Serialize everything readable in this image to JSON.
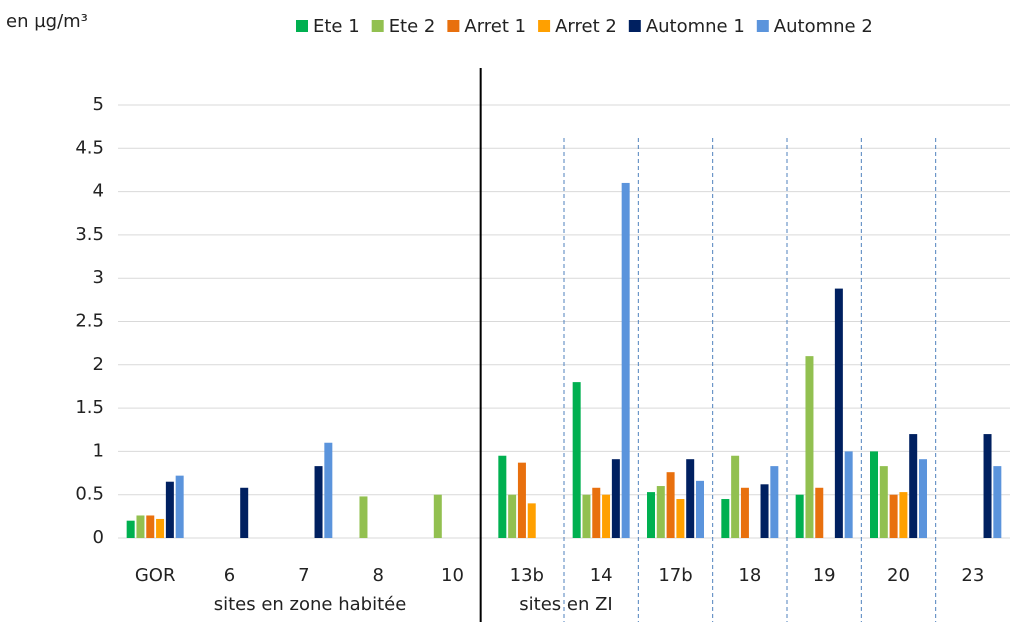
{
  "chart_data": {
    "type": "bar",
    "y_label": "en µg/m³",
    "categories": [
      "GOR",
      "6",
      "7",
      "8",
      "10",
      "13b",
      "14",
      "17b",
      "18",
      "19",
      "20",
      "23"
    ],
    "series": [
      {
        "name": "Ete 1",
        "color": "#00b050",
        "values": [
          0.2,
          null,
          null,
          null,
          null,
          0.95,
          1.8,
          0.53,
          0.45,
          0.5,
          1.0,
          null
        ]
      },
      {
        "name": "Ete 2",
        "color": "#92c050",
        "values": [
          0.26,
          null,
          null,
          0.48,
          0.5,
          0.5,
          0.5,
          0.6,
          0.95,
          2.1,
          0.83,
          null
        ]
      },
      {
        "name": "Arret 1",
        "color": "#e8700e",
        "values": [
          0.26,
          null,
          null,
          null,
          null,
          0.87,
          0.58,
          0.76,
          0.58,
          0.58,
          0.5,
          null
        ]
      },
      {
        "name": "Arret 2",
        "color": "#ffa000",
        "values": [
          0.22,
          null,
          null,
          null,
          null,
          0.4,
          0.5,
          0.45,
          null,
          null,
          0.53,
          null
        ]
      },
      {
        "name": "Automne 1",
        "color": "#002060",
        "values": [
          0.65,
          0.58,
          0.83,
          null,
          null,
          null,
          0.91,
          0.91,
          0.62,
          2.88,
          1.2,
          1.2
        ]
      },
      {
        "name": "Automne 2",
        "color": "#5b94dc",
        "values": [
          0.72,
          null,
          1.1,
          null,
          null,
          null,
          4.1,
          0.66,
          0.83,
          1.0,
          0.91,
          0.83
        ]
      }
    ],
    "annotations": [
      "sites en zone habitée",
      "sites en ZI"
    ],
    "ylim": [
      0,
      5
    ],
    "yticks": [
      0,
      0.5,
      1,
      1.5,
      2,
      2.5,
      3,
      3.5,
      4,
      4.5,
      5
    ],
    "grid": true
  }
}
